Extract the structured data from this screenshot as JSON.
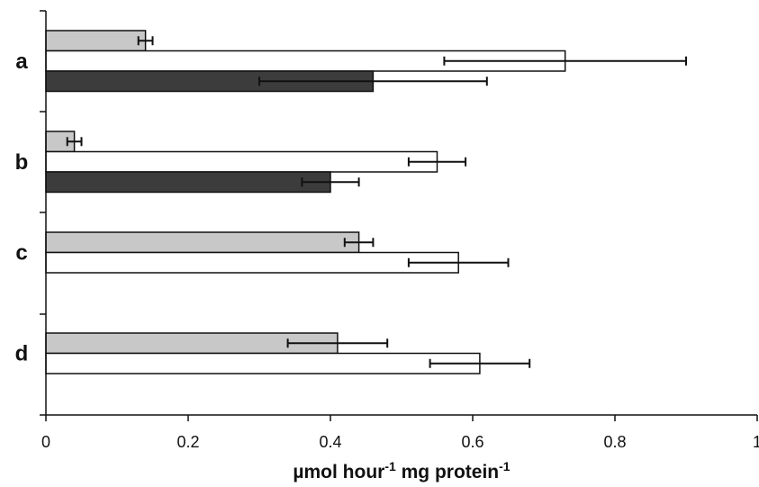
{
  "chart_data": {
    "type": "bar",
    "orientation": "horizontal",
    "categories": [
      "a",
      "b",
      "c",
      "d"
    ],
    "xlim": [
      0,
      1
    ],
    "xticks": [
      0,
      0.2,
      0.4,
      0.6,
      0.8,
      1
    ],
    "xtick_labels": [
      "0",
      "0.2",
      "0.4",
      "0.6",
      "0.8",
      "1"
    ],
    "xlabel": {
      "parts": [
        {
          "text": "µmol hour",
          "sup": false
        },
        {
          "text": "-1",
          "sup": true
        },
        {
          "text": " mg protein",
          "sup": false
        },
        {
          "text": "-1",
          "sup": true
        }
      ]
    },
    "grid": false,
    "legend": "none",
    "series": [
      {
        "color": "#c8c8c8",
        "values": [
          0.14,
          0.04,
          0.44,
          0.41
        ],
        "error": [
          [
            0.13,
            0.15
          ],
          [
            0.03,
            0.05
          ],
          [
            0.42,
            0.46
          ],
          [
            0.34,
            0.48
          ]
        ]
      },
      {
        "color": "#ffffff",
        "values": [
          0.73,
          0.55,
          0.58,
          0.61
        ],
        "error": [
          [
            0.56,
            0.9
          ],
          [
            0.51,
            0.59
          ],
          [
            0.51,
            0.65
          ],
          [
            0.54,
            0.68
          ]
        ]
      },
      {
        "color": "#3c3c3c",
        "values": [
          0.46,
          0.4,
          null,
          null
        ],
        "error": [
          [
            0.3,
            0.62
          ],
          [
            0.36,
            0.44
          ],
          null,
          null
        ]
      }
    ]
  }
}
